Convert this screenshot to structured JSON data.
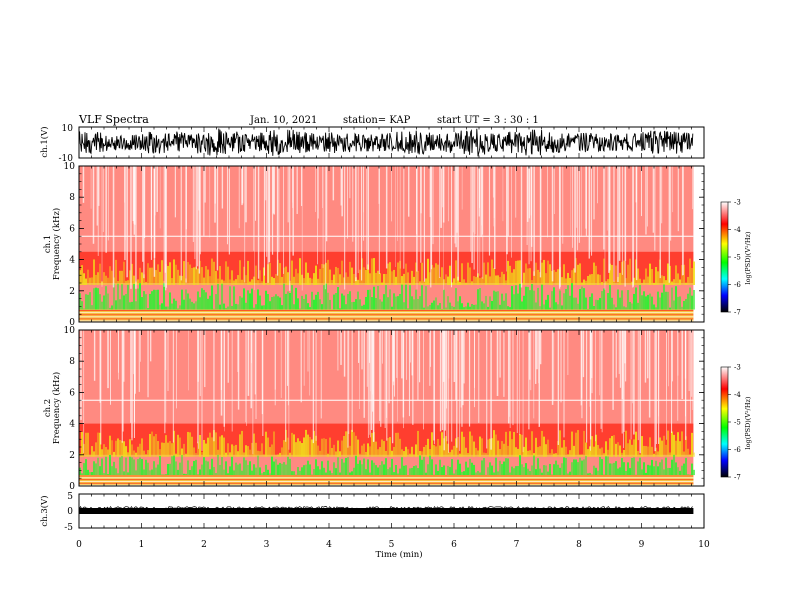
{
  "header": {
    "title": "VLF Spectra",
    "date": "Jan. 10, 2021",
    "station": "station= KAP",
    "start": "start  UT  =   3  : 30 : 1"
  },
  "panels": {
    "ch1_wave": {
      "ylabel": "ch.1(V)",
      "yticks": [
        "10",
        "-10"
      ]
    },
    "ch1_spec": {
      "ylabel_1": "ch.1",
      "ylabel_2": "Frequency  (kHz)",
      "yticks": [
        "0",
        "2",
        "4",
        "6",
        "8",
        "10"
      ]
    },
    "ch2_spec": {
      "ylabel_1": "ch.2",
      "ylabel_2": "Frequency  (kHz)",
      "yticks": [
        "0",
        "2",
        "4",
        "6",
        "8",
        "10"
      ]
    },
    "ch3_wave": {
      "ylabel": "ch.3(V)",
      "yticks": [
        "5",
        "0",
        "-5"
      ]
    }
  },
  "xaxis": {
    "label": "Time  (min)",
    "ticks": [
      "0",
      "1",
      "2",
      "3",
      "4",
      "5",
      "6",
      "7",
      "8",
      "9",
      "10"
    ]
  },
  "colorbar": {
    "label": "log(PSD)(V²/Hz)",
    "ticks": [
      "-3",
      "-4",
      "-5",
      "-6",
      "-7"
    ]
  },
  "colors": {
    "background": "#ffffff",
    "spectrum_red": "#ff2a1a",
    "spectrum_yellow": "#f2e21a",
    "spectrum_green": "#33ee33",
    "colorbar_stops": [
      "#ffffff",
      "#ff0000",
      "#ffff00",
      "#00ff00",
      "#00ffff",
      "#0000ff",
      "#000000"
    ]
  },
  "chart_data": [
    {
      "type": "line",
      "title": "",
      "xlabel": "",
      "ylabel": "ch.1(V)",
      "xlim": [
        0,
        10
      ],
      "ylim": [
        -10,
        10
      ],
      "data_end_min": 9.83,
      "description_series": "noisy waveform spanning roughly -10 to 10 V"
    },
    {
      "type": "heatmap",
      "title": "",
      "xlabel": "",
      "ylabel": "Frequency (kHz)",
      "xlim": [
        0,
        10
      ],
      "ylim": [
        0,
        10
      ],
      "data_end_min": 9.83,
      "colorbar": {
        "label": "log(PSD)(V²/Hz)",
        "range": [
          -7,
          -3
        ]
      },
      "bands": [
        {
          "freq_khz": [
            4.5,
            10
          ],
          "log_psd": -3.7
        },
        {
          "freq_khz": [
            2.5,
            4.5
          ],
          "log_psd": -4.3
        },
        {
          "freq_khz": [
            0.8,
            2.5
          ],
          "log_psd": -5.0
        },
        {
          "freq_khz": [
            0,
            0.8
          ],
          "log_psd": -4.2
        }
      ]
    },
    {
      "type": "heatmap",
      "title": "",
      "xlabel": "",
      "ylabel": "Frequency (kHz)",
      "xlim": [
        0,
        10
      ],
      "ylim": [
        0,
        10
      ],
      "data_end_min": 9.83,
      "colorbar": {
        "label": "log(PSD)(V²/Hz)",
        "range": [
          -7,
          -3
        ]
      },
      "bands": [
        {
          "freq_khz": [
            4.0,
            10
          ],
          "log_psd": -3.7
        },
        {
          "freq_khz": [
            2.0,
            4.0
          ],
          "log_psd": -4.3
        },
        {
          "freq_khz": [
            0.7,
            2.0
          ],
          "log_psd": -5.0
        },
        {
          "freq_khz": [
            0,
            0.7
          ],
          "log_psd": -4.2
        }
      ]
    },
    {
      "type": "line",
      "title": "",
      "xlabel": "Time (min)",
      "ylabel": "ch.3(V)",
      "xlim": [
        0,
        10
      ],
      "ylim": [
        -5,
        5
      ],
      "data_end_min": 9.83,
      "description_series": "near-constant thick trace around -1 V"
    }
  ]
}
